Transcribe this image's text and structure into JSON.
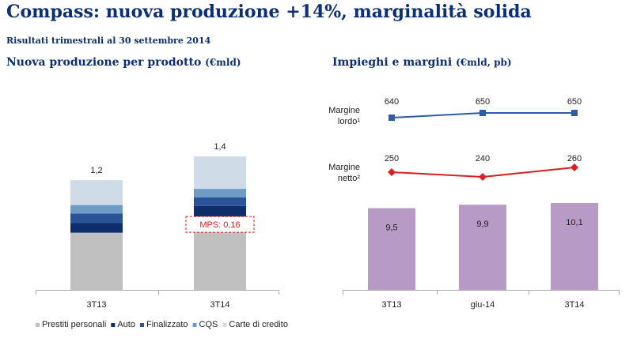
{
  "header": {
    "title": "Compass: nuova produzione +14%, marginalità solida",
    "subtitle": "Risultati trimestrali al 30 settembre 2014"
  },
  "colors": {
    "prestiti": "#c0c0c0",
    "auto": "#0d2d6b",
    "finalizzato": "#2a5398",
    "cqs": "#6e9cc7",
    "carte": "#cfdbe6",
    "lordo": "#2c5da8",
    "netto": "#d81e1e",
    "impieghi": "#b89ac6",
    "mps": "#d81e1e",
    "axis": "#aaaaaa",
    "title": "#0a2f73"
  },
  "chart_data": [
    {
      "type": "bar",
      "stacked": true,
      "title": "Nuova produzione per prodotto",
      "unit": "(€mld)",
      "categories": [
        "3T13",
        "3T14"
      ],
      "totals": [
        "1,2",
        "1,4"
      ],
      "series": [
        {
          "name": "Prestiti personali",
          "color_key": "prestiti",
          "values": [
            0.6,
            0.72
          ]
        },
        {
          "name": "Auto",
          "color_key": "auto",
          "values": [
            0.1,
            0.16
          ]
        },
        {
          "name": "Finalizzato",
          "color_key": "finalizzato",
          "values": [
            0.1,
            0.09
          ]
        },
        {
          "name": "CQS",
          "color_key": "cqs",
          "values": [
            0.09,
            0.09
          ]
        },
        {
          "name": "Carte di credito",
          "color_key": "carte",
          "values": [
            0.26,
            0.34
          ]
        }
      ],
      "annotation": {
        "category": "3T14",
        "text": "MPS: 0,16"
      },
      "ylim": [
        0,
        1.45
      ]
    },
    {
      "type": "bar+line",
      "title": "Impieghi e margini",
      "unit": "(€mld, pb)",
      "categories": [
        "3T13",
        "giu-14",
        "3T14"
      ],
      "bars": {
        "name": "Impieghi",
        "values": [
          9.5,
          9.9,
          10.1
        ],
        "labels": [
          "9,5",
          "9,9",
          "10,1"
        ],
        "ylim": [
          0,
          10.1
        ]
      },
      "lines": [
        {
          "name_lines": [
            "Margine",
            "lordo¹"
          ],
          "values": [
            640,
            650,
            650
          ],
          "labels": [
            "640",
            "650",
            "650"
          ],
          "color_key": "lordo",
          "marker": "square"
        },
        {
          "name_lines": [
            "Margine",
            "netto²"
          ],
          "values": [
            250,
            240,
            260
          ],
          "labels": [
            "250",
            "240",
            "260"
          ],
          "color_key": "netto",
          "marker": "diamond"
        }
      ]
    }
  ]
}
